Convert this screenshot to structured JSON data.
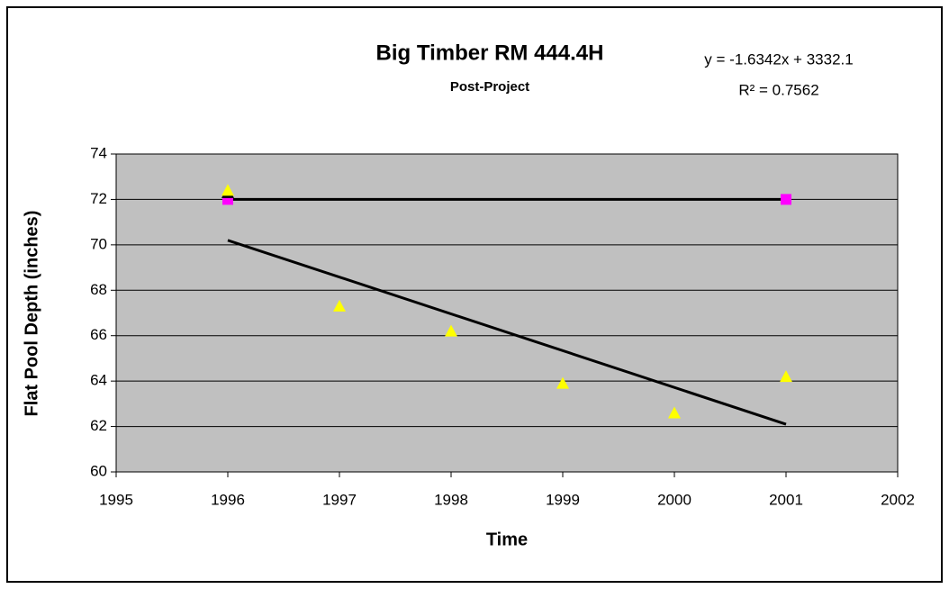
{
  "chart_data": {
    "type": "scatter",
    "title": "Big Timber RM 444.4H",
    "subtitle": "Post-Project",
    "equation": "y = -1.6342x + 3332.1",
    "r_squared": "R² = 0.7562",
    "xlabel": "Time",
    "ylabel": "Flat Pool Depth (inches)",
    "xlim": [
      1995,
      2002
    ],
    "xticks": [
      1995,
      1996,
      1997,
      1998,
      1999,
      2000,
      2001,
      2002
    ],
    "ylim": [
      60,
      74
    ],
    "yticks": [
      60,
      62,
      64,
      66,
      68,
      70,
      72,
      74
    ],
    "grid": true,
    "plot_background": "#c0c0c0",
    "series": [
      {
        "x": [
          1996,
          2001
        ],
        "values": [
          70.2,
          62.1
        ],
        "color": "#000000",
        "line": true,
        "marker": null
      },
      {
        "x": [
          1996,
          2001
        ],
        "values": [
          72,
          72
        ],
        "color": "#ff00ff",
        "line": true,
        "line_color": "#000000",
        "marker": "square"
      },
      {
        "x": [
          1996
        ],
        "values": [
          72.3
        ],
        "color": "#000000",
        "line": false,
        "marker": "triangle"
      },
      {
        "x": [
          1996,
          1997,
          1998,
          1999,
          2000,
          2001
        ],
        "values": [
          72.4,
          67.3,
          66.2,
          63.9,
          62.6,
          64.2
        ],
        "color": "#ffff00",
        "line": false,
        "marker": "triangle"
      }
    ]
  }
}
